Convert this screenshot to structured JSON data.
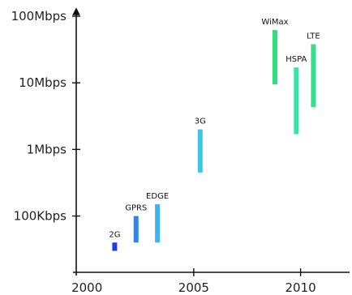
{
  "chart_data": {
    "type": "bar",
    "title": "",
    "xlabel": "",
    "ylabel": "",
    "y_scale": "log",
    "y_unit": "bps",
    "x_ticks": [
      {
        "value": 2000,
        "label": "2000"
      },
      {
        "value": 2005,
        "label": "2005"
      },
      {
        "value": 2010,
        "label": "2010"
      }
    ],
    "y_ticks": [
      {
        "value": 100000,
        "label": "100Kbps"
      },
      {
        "value": 1000000,
        "label": "1Mbps"
      },
      {
        "value": 10000000,
        "label": "10Mbps"
      },
      {
        "value": 100000000,
        "label": "100Mbps"
      }
    ],
    "xlim": [
      1999.5,
      2011.8
    ],
    "ylim": [
      20000,
      100000000
    ],
    "grid": false,
    "legend": "none",
    "series": [
      {
        "label": "2G",
        "year": 2001.3,
        "low": 30000,
        "high": 40000,
        "color": "#1f3fe6"
      },
      {
        "label": "GPRS",
        "year": 2002.3,
        "low": 40000,
        "high": 100000,
        "color": "#2f86e8"
      },
      {
        "label": "EDGE",
        "year": 2003.3,
        "low": 40000,
        "high": 150000,
        "color": "#3fb4f0"
      },
      {
        "label": "3G",
        "year": 2005.3,
        "low": 450000,
        "high": 2000000,
        "color": "#3cc6e4"
      },
      {
        "label": "WiMax",
        "year": 2008.8,
        "low": 9500000,
        "high": 62000000,
        "color": "#2ee07e"
      },
      {
        "label": "HSPA",
        "year": 2009.8,
        "low": 1700000,
        "high": 17000000,
        "color": "#33e6a6"
      },
      {
        "label": "LTE",
        "year": 2010.6,
        "low": 4300000,
        "high": 38000000,
        "color": "#36e08a"
      }
    ]
  }
}
